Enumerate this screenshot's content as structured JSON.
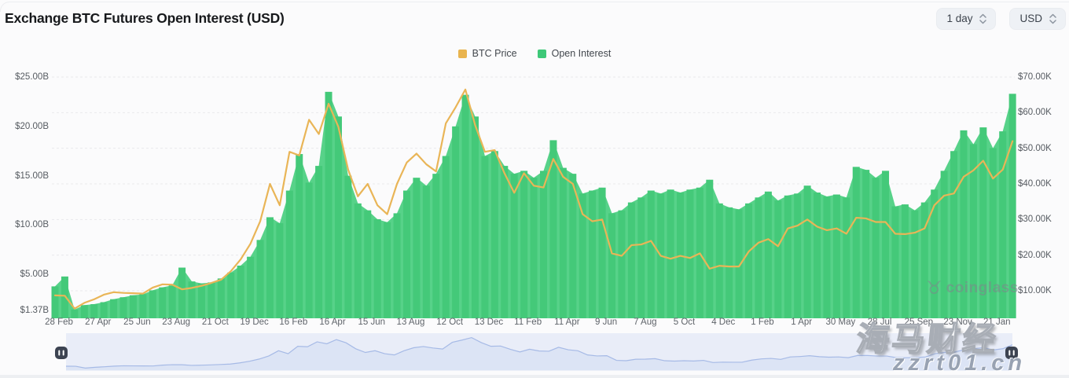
{
  "header": {
    "title": "Exchange BTC Futures Open Interest (USD)",
    "interval_dropdown": "1 day",
    "currency_dropdown": "USD"
  },
  "legend": {
    "items": [
      {
        "label": "BTC Price",
        "color": "#e9b44f"
      },
      {
        "label": "Open Interest",
        "color": "#3ec878"
      }
    ]
  },
  "chart_data": {
    "type": "mixed",
    "title": "Exchange BTC Futures Open Interest (USD)",
    "legend_position": "top-center",
    "grid": "horizontal-dashed",
    "x_labels": [
      "28 Feb",
      "27 Apr",
      "25 Jun",
      "23 Aug",
      "21 Oct",
      "19 Dec",
      "16 Feb",
      "16 Apr",
      "15 Jun",
      "13 Aug",
      "12 Oct",
      "13 Dec",
      "11 Feb",
      "11 Apr",
      "9 Jun",
      "7 Aug",
      "5 Oct",
      "4 Dec",
      "1 Feb",
      "1 Apr",
      "30 May",
      "28 Jul",
      "25 Sep",
      "23 Nov",
      "21 Jan"
    ],
    "points_per_label_interval": 4,
    "left_axis": {
      "series": "Open Interest",
      "unit": "billion USD",
      "tick_labels": [
        "$25.00B",
        "$20.00B",
        "$15.00B",
        "$10.00B",
        "$5.00B",
        "$1.37B"
      ],
      "tick_values": [
        25,
        20,
        15,
        10,
        5,
        1.37
      ],
      "range": [
        1.37,
        25
      ]
    },
    "right_axis": {
      "series": "BTC Price",
      "unit": "thousand USD",
      "tick_labels": [
        "$70.00K",
        "$60.00K",
        "$50.00K",
        "$40.00K",
        "$30.00K",
        "$20.00K",
        "$10.00K"
      ],
      "tick_values": [
        70,
        60,
        50,
        40,
        30,
        20,
        10
      ],
      "range": [
        4,
        70
      ]
    },
    "series": [
      {
        "name": "Open Interest",
        "type": "bar",
        "axis": "left",
        "color": "#44c979",
        "color_light": "#57d289",
        "values": [
          3.8,
          4.8,
          1.45,
          1.9,
          2.0,
          2.2,
          2.5,
          2.7,
          2.9,
          3.0,
          3.4,
          3.7,
          3.9,
          5.7,
          4.3,
          4.1,
          4.2,
          4.6,
          5.2,
          5.9,
          6.8,
          8.5,
          10.8,
          10.2,
          13.5,
          17.2,
          14.3,
          16.0,
          23.5,
          21.0,
          15.0,
          12.2,
          11.5,
          10.6,
          10.3,
          11.2,
          13.5,
          14.8,
          14.0,
          15.2,
          17.0,
          20.0,
          23.2,
          21.0,
          17.0,
          17.5,
          16.0,
          15.2,
          15.5,
          14.8,
          15.5,
          18.6,
          15.8,
          15.2,
          13.2,
          13.5,
          13.8,
          11.2,
          11.5,
          12.3,
          12.8,
          13.5,
          13.2,
          13.6,
          13.3,
          13.6,
          13.8,
          14.6,
          12.2,
          11.8,
          11.6,
          12.2,
          12.8,
          13.4,
          12.5,
          13.0,
          13.2,
          14.0,
          13.3,
          12.9,
          13.1,
          12.8,
          15.9,
          15.6,
          14.8,
          15.5,
          11.9,
          12.1,
          11.5,
          12.3,
          13.6,
          15.5,
          17.5,
          19.6,
          18.2,
          19.9,
          17.8,
          19.5,
          23.3
        ]
      },
      {
        "name": "BTC Price",
        "type": "line",
        "axis": "right",
        "color": "#e9b557",
        "values": [
          8.7,
          8.6,
          5.0,
          6.6,
          7.6,
          8.9,
          9.6,
          9.4,
          9.3,
          9.2,
          10.9,
          11.8,
          11.7,
          10.4,
          10.8,
          11.4,
          12.2,
          13.1,
          15.5,
          18.8,
          23.2,
          29.5,
          40.0,
          34.0,
          49.0,
          48.0,
          58.0,
          54.0,
          62.5,
          56.0,
          44.0,
          36.5,
          40.0,
          34.0,
          31.5,
          40.0,
          46.0,
          48.5,
          45.5,
          43.5,
          57.0,
          61.5,
          66.5,
          56.5,
          49.0,
          49.5,
          43.0,
          37.5,
          43.0,
          39.5,
          39.0,
          47.0,
          42.0,
          40.0,
          31.5,
          29.5,
          30.0,
          20.5,
          19.8,
          22.8,
          23.0,
          24.0,
          19.8,
          19.0,
          19.8,
          19.2,
          20.5,
          16.2,
          17.0,
          16.8,
          16.8,
          21.0,
          23.5,
          24.5,
          22.5,
          27.5,
          28.3,
          30.0,
          28.0,
          27.0,
          27.5,
          26.0,
          30.5,
          30.3,
          29.3,
          29.3,
          26.0,
          25.9,
          26.3,
          27.5,
          34.0,
          36.7,
          37.3,
          42.0,
          43.8,
          46.5,
          41.5,
          44.0,
          52.0
        ]
      }
    ]
  },
  "navigator": {
    "shows_series": "BTC Price",
    "background": "#e9edf8",
    "area_fill": "#dce4f5",
    "line_color": "#a6bae6"
  },
  "watermarks": {
    "coinglass": "coinglass",
    "bull_icon": "taurus-bull-icon",
    "site_name": "海马财经",
    "site_url": "zzrt01.cn"
  }
}
